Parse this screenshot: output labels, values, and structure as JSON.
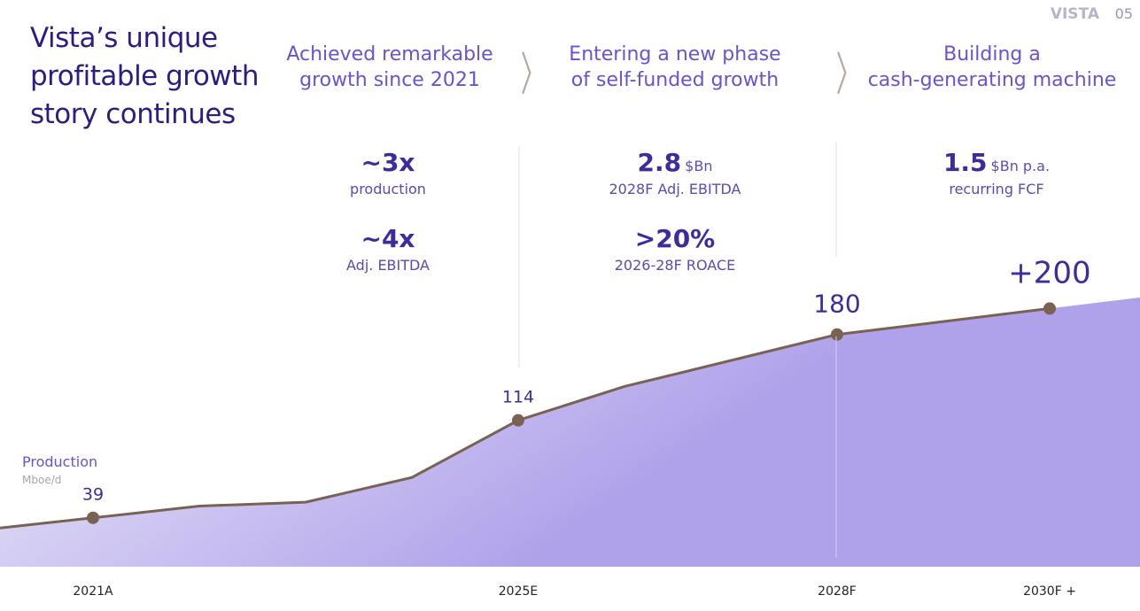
{
  "header": {
    "title_lines": [
      "Vista’s unique",
      "profitable growth",
      "story continues"
    ],
    "brand": "VISTA",
    "page": "05"
  },
  "phases": [
    {
      "lines": [
        "Achieved remarkable",
        "growth since 2021"
      ]
    },
    {
      "lines": [
        "Entering a new phase",
        "of self-funded growth"
      ]
    },
    {
      "lines": [
        "Building a",
        "cash-generating machine"
      ]
    }
  ],
  "metrics": [
    [
      {
        "value": "~3x",
        "caption": "production"
      },
      {
        "value": "~4x",
        "caption": "Adj. EBITDA"
      }
    ],
    [
      {
        "value": "2.8",
        "unit": "$Bn",
        "caption": "2028F Adj. EBITDA"
      },
      {
        "value": ">20%",
        "caption": "2026-28F ROACE"
      }
    ],
    [
      {
        "value": "1.5",
        "unit": "$Bn p.a.",
        "caption": "recurring FCF"
      }
    ]
  ],
  "chart_data": {
    "type": "area",
    "y_label": "Production",
    "y_unit": "Mboe/d",
    "categories": [
      "2021A",
      null,
      null,
      null,
      "2025E",
      null,
      null,
      "2028F",
      null,
      "2030F +"
    ],
    "values": [
      39,
      48,
      51,
      70,
      114,
      140,
      160,
      180,
      190,
      200
    ],
    "value_labels": [
      "39",
      null,
      null,
      null,
      "114",
      null,
      null,
      "180",
      null,
      "+200"
    ],
    "color": "#7a6252",
    "fill_start": "#f0eefb",
    "fill_end": "#b0a2ea",
    "ylim": [
      0,
      250
    ]
  }
}
